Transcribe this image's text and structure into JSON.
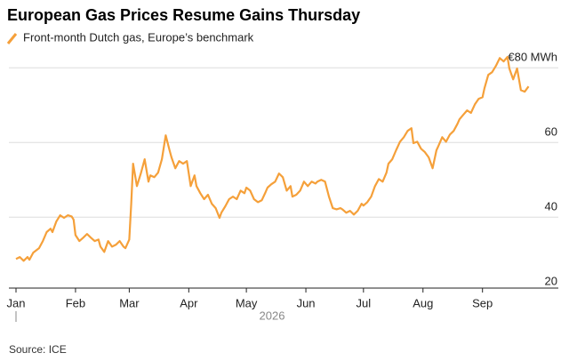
{
  "chart_data": {
    "type": "line",
    "title": "European Gas Prices Resume Gains Thursday",
    "source": "Source: ICE",
    "year_label": "2026",
    "x": [
      0,
      2,
      4,
      6,
      7,
      9,
      12,
      14,
      16,
      18,
      19,
      21,
      23,
      25,
      27,
      29,
      30,
      31,
      33,
      35,
      37,
      39,
      41,
      43,
      44,
      46,
      48,
      50,
      52,
      54,
      56,
      57,
      59,
      60,
      61,
      63,
      65,
      67,
      69,
      70,
      72,
      74,
      76,
      78,
      80,
      81,
      83,
      85,
      87,
      89,
      91,
      93,
      94,
      96,
      98,
      100,
      102,
      104,
      106,
      107,
      109,
      111,
      113,
      115,
      117,
      119,
      120,
      122,
      124,
      126,
      128,
      130,
      131,
      133,
      135,
      137,
      139,
      141,
      143,
      144,
      146,
      148,
      150,
      152,
      154,
      156,
      157,
      159,
      161,
      163,
      165,
      167,
      169,
      170,
      172,
      174,
      176,
      178,
      180,
      181,
      183,
      185,
      187,
      189,
      191,
      193,
      194,
      196,
      198,
      200,
      202,
      204,
      206,
      207,
      209,
      211,
      213,
      215,
      217,
      219,
      220,
      222,
      224,
      226,
      228,
      230,
      231,
      233,
      235,
      237,
      239,
      241,
      243,
      244,
      246,
      248,
      250,
      252,
      254,
      256,
      257,
      259,
      261,
      263,
      265,
      267
    ],
    "series": [
      {
        "name": "Front-month Dutch gas, Europe’s benchmark",
        "color": "#f5a03a",
        "values": [
          28.8,
          29.3,
          28.3,
          29.3,
          28.6,
          30.5,
          31.7,
          33.6,
          36.0,
          36.9,
          36.0,
          38.8,
          40.5,
          39.8,
          40.5,
          40.2,
          39.3,
          35.2,
          33.6,
          34.5,
          35.5,
          34.5,
          33.6,
          34.0,
          32.1,
          30.7,
          33.6,
          32.1,
          32.6,
          33.6,
          32.1,
          31.7,
          34.0,
          43.6,
          54.3,
          48.3,
          51.7,
          55.5,
          49.5,
          51.2,
          50.7,
          51.9,
          55.5,
          61.9,
          57.9,
          56.0,
          53.1,
          55.0,
          54.3,
          55.0,
          48.3,
          51.2,
          48.3,
          46.4,
          44.8,
          46.0,
          43.6,
          42.4,
          39.8,
          41.2,
          42.9,
          44.8,
          45.5,
          44.8,
          47.1,
          46.4,
          47.9,
          47.1,
          44.8,
          44.0,
          44.5,
          46.7,
          47.9,
          48.8,
          49.5,
          51.7,
          50.7,
          47.1,
          48.3,
          45.5,
          46.0,
          47.1,
          49.5,
          48.3,
          49.5,
          49.0,
          49.5,
          50.0,
          49.5,
          45.5,
          42.4,
          42.1,
          42.4,
          42.1,
          41.2,
          41.7,
          40.7,
          41.7,
          43.6,
          43.1,
          44.0,
          45.5,
          48.3,
          50.2,
          49.5,
          51.9,
          54.3,
          55.5,
          57.9,
          60.2,
          61.4,
          63.1,
          63.8,
          59.8,
          60.2,
          58.3,
          57.4,
          56.0,
          53.1,
          57.9,
          59.0,
          61.4,
          60.2,
          62.1,
          63.1,
          65.0,
          66.2,
          67.4,
          68.6,
          67.9,
          70.2,
          71.7,
          72.1,
          74.5,
          78.1,
          78.8,
          80.5,
          82.6,
          81.7,
          82.9,
          79.8,
          76.9,
          79.8,
          74.0,
          73.6,
          75.0
        ]
      }
    ],
    "xlim": [
      0,
      270
    ],
    "xticks": [
      {
        "value": 0,
        "label": "Jan"
      },
      {
        "value": 31,
        "label": "Feb"
      },
      {
        "value": 59,
        "label": "Mar"
      },
      {
        "value": 90,
        "label": "Apr"
      },
      {
        "value": 120,
        "label": "May"
      },
      {
        "value": 151,
        "label": "Jun"
      },
      {
        "value": 181,
        "label": "Jul"
      },
      {
        "value": 212,
        "label": "Aug"
      },
      {
        "value": 243,
        "label": "Sep"
      }
    ],
    "ylim": [
      21,
      85
    ],
    "yticks": [
      20,
      40,
      60,
      {
        "value": 80,
        "label": "€80 MWh"
      }
    ],
    "grid": true
  }
}
